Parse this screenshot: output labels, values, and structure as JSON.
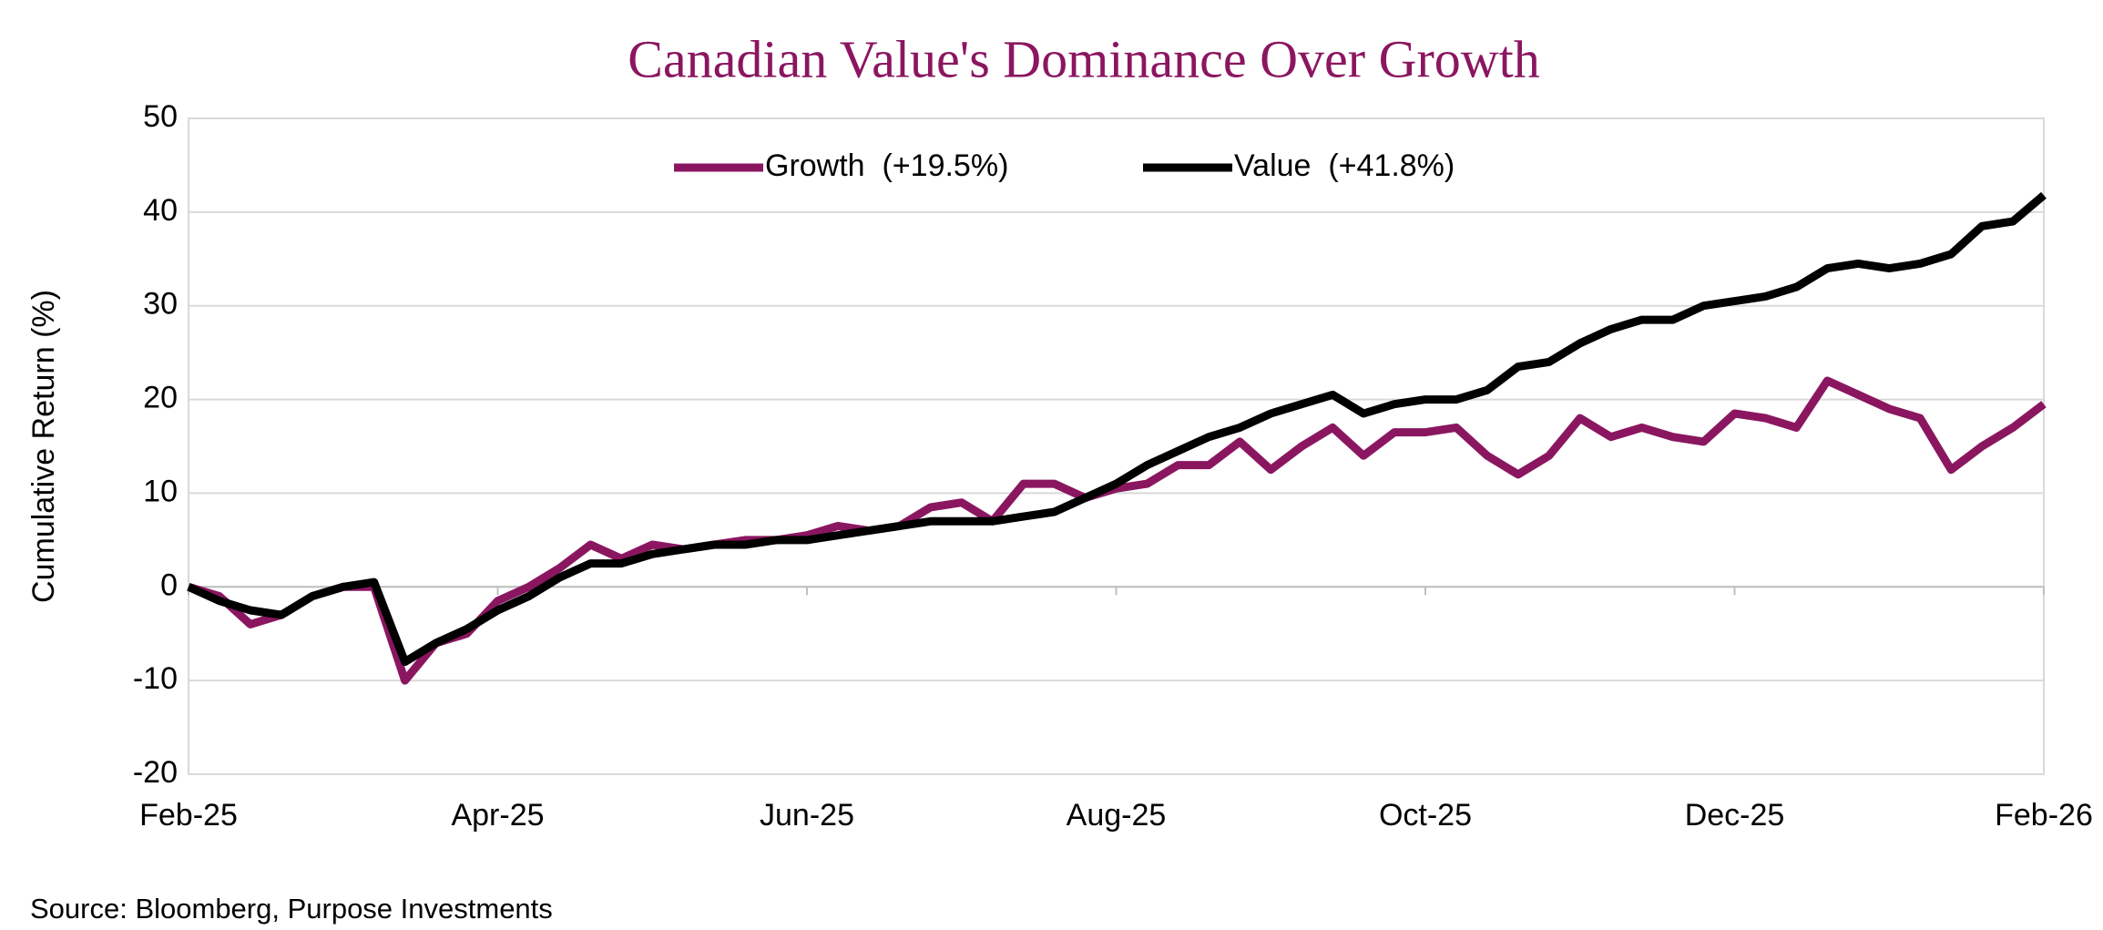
{
  "chart_data": {
    "type": "line",
    "title": "Canadian Value's Dominance Over Growth",
    "y_label": "Cumulative Return (%)",
    "source": "Source: Bloomberg, Purpose Investments",
    "categories": [
      "Feb-25",
      null,
      null,
      null,
      null,
      null,
      null,
      null,
      null,
      null,
      "Apr-25",
      null,
      null,
      null,
      null,
      null,
      null,
      null,
      null,
      null,
      "Jun-25",
      null,
      null,
      null,
      null,
      null,
      null,
      null,
      null,
      null,
      "Aug-25",
      null,
      null,
      null,
      null,
      null,
      null,
      null,
      null,
      null,
      "Oct-25",
      null,
      null,
      null,
      null,
      null,
      null,
      null,
      null,
      null,
      "Dec-25",
      null,
      null,
      null,
      null,
      null,
      null,
      null,
      null,
      null,
      "Feb-26"
    ],
    "series": [
      {
        "name": "Growth  (+19.5%)",
        "color": "#8b1660",
        "values": [
          0,
          -1,
          -4,
          -3,
          -1,
          0,
          0,
          -10,
          -6,
          -5,
          -1.5,
          0,
          2,
          4.5,
          3,
          4.5,
          4,
          4.5,
          5,
          5,
          5.5,
          6.5,
          6,
          6.5,
          8.5,
          9,
          7,
          11,
          11,
          9.5,
          10.5,
          11,
          13,
          13,
          15.5,
          12.5,
          15,
          17,
          14,
          16.5,
          16.5,
          17,
          14,
          12,
          14,
          18,
          16,
          17,
          16,
          15.5,
          18.5,
          18,
          17,
          22,
          20.5,
          19,
          18,
          12.5,
          15,
          17,
          19.5
        ]
      },
      {
        "name": "Value  (+41.8%)",
        "color": "#000000",
        "values": [
          0,
          -1.5,
          -2.5,
          -3,
          -1,
          0,
          0.5,
          -8,
          -6,
          -4.5,
          -2.5,
          -1,
          1,
          2.5,
          2.5,
          3.5,
          4,
          4.5,
          4.5,
          5,
          5,
          5.5,
          6,
          6.5,
          7,
          7,
          7,
          7.5,
          8,
          9.5,
          11,
          13,
          14.5,
          16,
          17,
          18.5,
          19.5,
          20.5,
          18.5,
          19.5,
          20,
          20,
          21,
          23.5,
          24,
          26,
          27.5,
          28.5,
          28.5,
          30,
          30.5,
          31,
          32,
          34,
          34.5,
          34,
          34.5,
          35.5,
          38.5,
          39,
          41.8
        ]
      }
    ],
    "ylim": [
      -20,
      50
    ],
    "yticks": [
      -20,
      -10,
      0,
      10,
      20,
      30,
      40,
      50
    ],
    "grid": true,
    "legend": "top"
  }
}
